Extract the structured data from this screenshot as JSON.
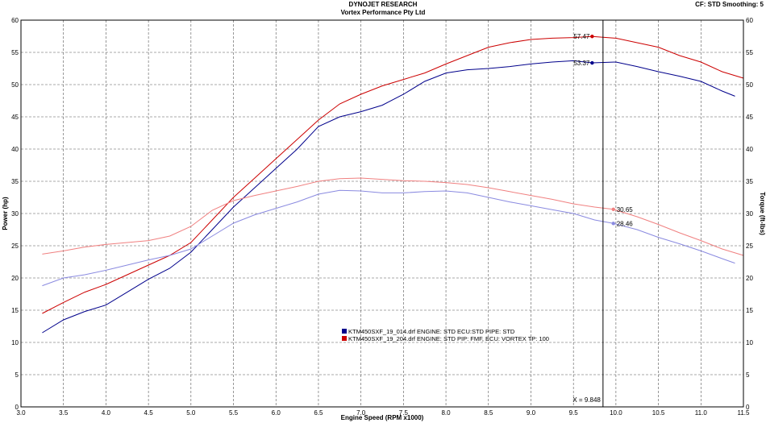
{
  "header": {
    "title": "DYNOJET RESEARCH",
    "subtitle": "Vortex Performance Pty Ltd",
    "settings": "CF: STD   Smoothing: 5"
  },
  "chart_data": {
    "type": "line",
    "xlabel": "Engine Speed (RPM x1000)",
    "ylabel_left": "Power (hp)",
    "ylabel_right": "Torque (ft-lbs)",
    "xlim": [
      3.0,
      11.5
    ],
    "ylim": [
      0,
      60
    ],
    "x_ticks": [
      "3.0",
      "3.5",
      "4.0",
      "4.5",
      "5.0",
      "5.5",
      "6.0",
      "6.5",
      "7.0",
      "7.5",
      "8.0",
      "8.5",
      "9.0",
      "9.5",
      "10.0",
      "10.5",
      "11.0",
      "11.5"
    ],
    "y_ticks_left": [
      "0",
      "5",
      "10",
      "15",
      "20",
      "25",
      "30",
      "35",
      "40",
      "45",
      "50",
      "55",
      "60"
    ],
    "y_ticks_right": [
      "0",
      "5",
      "10",
      "15",
      "20",
      "25",
      "30",
      "35",
      "40",
      "45",
      "50",
      "55",
      "60"
    ],
    "grid": true,
    "cursor": {
      "x": 9.848,
      "label": "X = 9.848"
    },
    "annotations": [
      {
        "text": "57.47",
        "x": 9.72,
        "y": 57.47,
        "color": "#cc0000"
      },
      {
        "text": "53.37",
        "x": 9.72,
        "y": 53.37,
        "color": "#00008b"
      },
      {
        "text": "30.65",
        "x": 9.97,
        "y": 30.65,
        "color": "#f08080"
      },
      {
        "text": "28.46",
        "x": 9.97,
        "y": 28.46,
        "color": "#8a8ae0"
      }
    ],
    "legend": {
      "placement": "center-bottom",
      "entries": [
        "KTM450SXF_19_014.drf ENGINE: STD ECU:STD PIPE: STD",
        "KTM450SXF_19_204.drf ENGINE: STD PIP: FMF, ECU: VORTEX TP: 100"
      ]
    },
    "series": [
      {
        "name": "KTM450SXF_19_014.drf ENGINE: STD ECU:STD PIPE: STD",
        "kind": "power",
        "color": "#00008b",
        "x": [
          3.25,
          3.5,
          3.75,
          4.0,
          4.25,
          4.5,
          4.75,
          5.0,
          5.25,
          5.5,
          5.75,
          6.0,
          6.25,
          6.5,
          6.75,
          7.0,
          7.25,
          7.5,
          7.75,
          8.0,
          8.25,
          8.5,
          8.75,
          9.0,
          9.25,
          9.5,
          9.72,
          10.0,
          10.25,
          10.5,
          10.75,
          11.0,
          11.25,
          11.4
        ],
        "y": [
          11.5,
          13.5,
          14.8,
          15.8,
          17.8,
          19.8,
          21.5,
          24.0,
          27.5,
          31.0,
          34.0,
          37.0,
          40.0,
          43.5,
          45.0,
          45.8,
          46.8,
          48.5,
          50.5,
          51.8,
          52.3,
          52.5,
          52.8,
          53.2,
          53.5,
          53.7,
          53.37,
          53.5,
          52.8,
          52.0,
          51.3,
          50.5,
          49.0,
          48.2
        ]
      },
      {
        "name": "KTM450SXF_19_204.drf ENGINE: STD PIP: FMF, ECU: VORTEX TP: 100",
        "kind": "power",
        "color": "#cc0000",
        "x": [
          3.25,
          3.5,
          3.75,
          4.0,
          4.25,
          4.5,
          4.75,
          5.0,
          5.25,
          5.5,
          5.75,
          6.0,
          6.25,
          6.5,
          6.75,
          7.0,
          7.25,
          7.5,
          7.75,
          8.0,
          8.25,
          8.5,
          8.75,
          9.0,
          9.25,
          9.5,
          9.72,
          10.0,
          10.25,
          10.5,
          10.75,
          11.0,
          11.25,
          11.5
        ],
        "y": [
          14.5,
          16.2,
          17.8,
          19.0,
          20.5,
          22.0,
          23.5,
          25.5,
          29.0,
          32.5,
          35.5,
          38.5,
          41.5,
          44.5,
          47.0,
          48.5,
          49.8,
          50.8,
          51.8,
          53.2,
          54.5,
          55.8,
          56.5,
          57.0,
          57.2,
          57.3,
          57.47,
          57.2,
          56.5,
          55.8,
          54.5,
          53.5,
          52.0,
          51.0
        ]
      },
      {
        "name": "KTM450SXF_19_014.drf ENGINE: STD ECU:STD PIPE: STD",
        "kind": "torque",
        "color": "#8a8ae0",
        "x": [
          3.25,
          3.5,
          3.75,
          4.0,
          4.25,
          4.5,
          4.75,
          5.0,
          5.25,
          5.5,
          5.75,
          6.0,
          6.25,
          6.5,
          6.75,
          7.0,
          7.25,
          7.5,
          7.75,
          8.0,
          8.25,
          8.5,
          8.75,
          9.0,
          9.25,
          9.5,
          9.75,
          9.97,
          10.25,
          10.5,
          10.75,
          11.0,
          11.25,
          11.4
        ],
        "y": [
          18.8,
          20.0,
          20.5,
          21.2,
          22.0,
          22.8,
          23.5,
          24.5,
          26.5,
          28.5,
          29.8,
          30.8,
          31.8,
          33.0,
          33.6,
          33.5,
          33.2,
          33.2,
          33.4,
          33.5,
          33.2,
          32.5,
          31.8,
          31.2,
          30.6,
          30.0,
          29.0,
          28.46,
          27.5,
          26.3,
          25.3,
          24.2,
          23.0,
          22.3
        ]
      },
      {
        "name": "KTM450SXF_19_204.drf ENGINE: STD PIP: FMF, ECU: VORTEX TP: 100",
        "kind": "torque",
        "color": "#f08080",
        "x": [
          3.25,
          3.5,
          3.75,
          4.0,
          4.25,
          4.5,
          4.75,
          5.0,
          5.25,
          5.5,
          5.75,
          6.0,
          6.25,
          6.5,
          6.75,
          7.0,
          7.25,
          7.5,
          7.75,
          8.0,
          8.25,
          8.5,
          8.75,
          9.0,
          9.25,
          9.5,
          9.75,
          9.97,
          10.25,
          10.5,
          10.75,
          11.0,
          11.25,
          11.5
        ],
        "y": [
          23.7,
          24.2,
          24.8,
          25.2,
          25.5,
          25.8,
          26.5,
          28.0,
          30.5,
          32.0,
          32.8,
          33.5,
          34.2,
          35.0,
          35.4,
          35.5,
          35.3,
          35.1,
          35.0,
          34.8,
          34.5,
          34.0,
          33.4,
          32.8,
          32.2,
          31.5,
          31.0,
          30.65,
          29.5,
          28.3,
          27.0,
          25.8,
          24.5,
          23.5
        ]
      }
    ]
  }
}
